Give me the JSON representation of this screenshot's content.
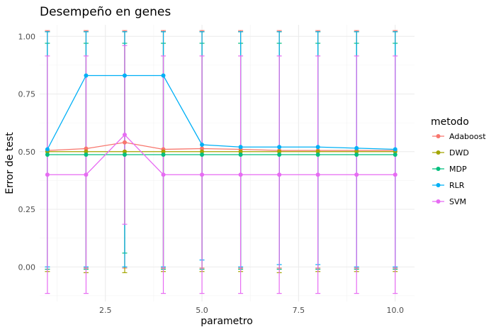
{
  "chart_data": {
    "type": "line",
    "title": "Desempeño en genes",
    "xlabel": "parametro",
    "ylabel": "Error de test",
    "xlim": [
      0.8,
      10.5
    ],
    "ylim": [
      -0.15,
      1.05
    ],
    "x_ticks": [
      2.5,
      5.0,
      7.5,
      10.0
    ],
    "x_tick_labels": [
      "2.5",
      "5.0",
      "7.5",
      "10.0"
    ],
    "y_ticks": [
      0.0,
      0.25,
      0.5,
      0.75,
      1.0
    ],
    "y_tick_labels": [
      "0.00",
      "0.25",
      "0.50",
      "0.75",
      "1.00"
    ],
    "grid": true,
    "legend": {
      "title": "metodo",
      "position": "right"
    },
    "x": [
      1,
      2,
      3,
      4,
      5,
      6,
      7,
      8,
      9,
      10
    ],
    "series": [
      {
        "name": "Adaboost",
        "color": "#F8766D",
        "values": [
          0.505,
          0.513,
          0.54,
          0.51,
          0.513,
          0.51,
          0.505,
          0.505,
          0.505,
          0.505
        ],
        "lower": [
          -0.01,
          -0.005,
          -0.005,
          -0.005,
          -0.005,
          -0.005,
          -0.005,
          -0.005,
          -0.005,
          -0.005
        ],
        "upper": [
          1.025,
          1.025,
          1.025,
          1.025,
          1.025,
          1.025,
          1.025,
          1.025,
          1.025,
          1.025
        ]
      },
      {
        "name": "DWD",
        "color": "#A3A500",
        "values": [
          0.5,
          0.5,
          0.5,
          0.5,
          0.5,
          0.5,
          0.5,
          0.5,
          0.5,
          0.5
        ],
        "lower": [
          -0.02,
          -0.025,
          -0.025,
          -0.02,
          -0.02,
          -0.02,
          -0.025,
          -0.02,
          -0.02,
          -0.02
        ],
        "upper": [
          1.02,
          1.02,
          1.02,
          1.02,
          1.02,
          1.02,
          1.02,
          1.02,
          1.02,
          1.02
        ]
      },
      {
        "name": "MDP",
        "color": "#00BF7D",
        "values": [
          0.487,
          0.487,
          0.487,
          0.487,
          0.487,
          0.487,
          0.487,
          0.487,
          0.487,
          0.487
        ],
        "lower": [
          -0.01,
          -0.01,
          0.06,
          -0.01,
          -0.01,
          -0.01,
          -0.01,
          -0.01,
          -0.01,
          -0.01
        ],
        "upper": [
          0.97,
          0.97,
          0.97,
          0.97,
          0.97,
          0.97,
          0.97,
          0.97,
          0.97,
          0.97
        ]
      },
      {
        "name": "RLR",
        "color": "#00B0F6",
        "values": [
          0.51,
          0.83,
          0.83,
          0.83,
          0.53,
          0.52,
          0.52,
          0.52,
          0.515,
          0.51
        ],
        "lower": [
          0.0,
          0.0,
          0.0,
          0.0,
          0.03,
          0.0,
          0.01,
          0.01,
          0.0,
          0.0
        ],
        "upper": [
          1.02,
          1.02,
          1.02,
          1.02,
          1.02,
          1.02,
          1.02,
          1.02,
          1.02,
          1.02
        ]
      },
      {
        "name": "SVM",
        "color": "#E76BF3",
        "values": [
          0.4,
          0.4,
          0.573,
          0.4,
          0.4,
          0.4,
          0.4,
          0.4,
          0.4,
          0.4
        ],
        "lower": [
          -0.115,
          -0.115,
          0.185,
          -0.115,
          -0.115,
          -0.115,
          -0.115,
          -0.115,
          -0.115,
          -0.115
        ],
        "upper": [
          0.915,
          0.915,
          0.96,
          0.915,
          0.915,
          0.915,
          0.915,
          0.915,
          0.915,
          0.915
        ]
      }
    ]
  }
}
